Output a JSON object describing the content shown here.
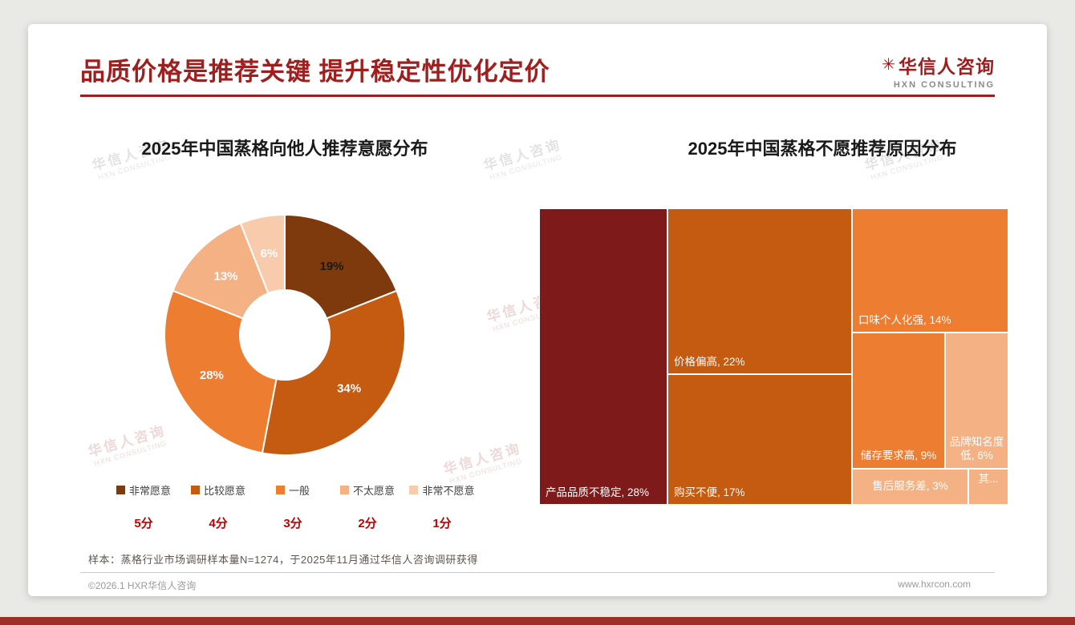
{
  "header": {
    "title": "品质价格是推荐关键 提升稳定性优化定价",
    "logo": {
      "mark": "✳",
      "name": "华信人咨询",
      "sub": "HXN CONSULTING"
    }
  },
  "watermark": {
    "line1": "华信人咨询",
    "line2": "HXN CONSULTING"
  },
  "chart_data": [
    {
      "type": "pie",
      "subtype": "donut",
      "title": "2025年中国蒸格向他人推荐意愿分布",
      "labels": [
        "非常愿意",
        "比较愿意",
        "一般",
        "不太愿意",
        "非常不愿意"
      ],
      "values": [
        19,
        34,
        28,
        13,
        6
      ],
      "value_labels": [
        "19%",
        "34%",
        "28%",
        "13%",
        "6%"
      ],
      "scores": [
        "5分",
        "4分",
        "3分",
        "2分",
        "1分"
      ],
      "colors": [
        "#7E3A0C",
        "#C55A11",
        "#ED7D31",
        "#F4B183",
        "#F8CBAD"
      ],
      "value_label_colors": [
        "#1a1a1a",
        "#ffffff",
        "#ffffff",
        "#ffffff",
        "#ffffff"
      ],
      "legend_position": "bottom",
      "start_angle": 0,
      "direction": "clockwise"
    },
    {
      "type": "treemap",
      "title": "2025年中国蒸格不愿推荐原因分布",
      "items": [
        {
          "label": "产品品质不稳定",
          "value": 28,
          "text": "产品品质不稳定, 28%",
          "color": "#7E1A1A"
        },
        {
          "label": "价格偏高",
          "value": 22,
          "text": "价格偏高, 22%",
          "color": "#C55A11"
        },
        {
          "label": "购买不便",
          "value": 17,
          "text": "购买不便, 17%",
          "color": "#C55A11"
        },
        {
          "label": "口味个人化强",
          "value": 14,
          "text": "口味个人化强, 14%",
          "color": "#ED7D31"
        },
        {
          "label": "储存要求高",
          "value": 9,
          "text": "储存要求高, 9%",
          "color": "#ED7D31"
        },
        {
          "label": "品牌知名度低",
          "value": 6,
          "text": "品牌知名度低, 6%",
          "color": "#F4B183"
        },
        {
          "label": "售后服务差",
          "value": 3,
          "text": "售后服务差, 3%",
          "color": "#F4B183"
        },
        {
          "label": "其他",
          "value": null,
          "text": "其...",
          "color": "#F4B183"
        }
      ]
    }
  ],
  "footnote": "样本：蒸格行业市场调研样本量N=1274，于2025年11月通过华信人咨询调研获得",
  "footer": {
    "left": "©2026.1 HXR华信人咨询",
    "right": "www.hxrcon.com"
  },
  "colors": {
    "accent_red": "#A11E1E",
    "score_red": "#C00000",
    "bottom_bar": "#9C2F27"
  }
}
